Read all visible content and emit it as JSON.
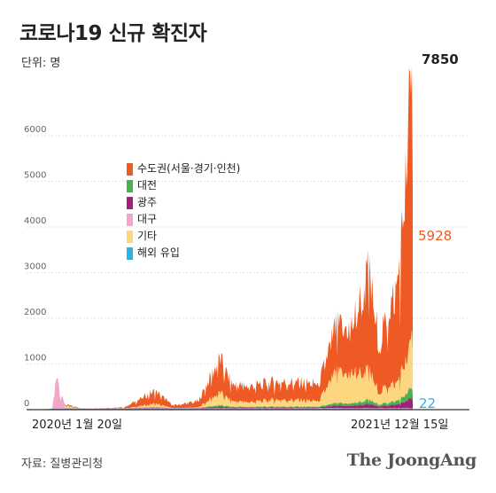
{
  "title": "코로나19 신규 확진자",
  "unit": "단위: 명",
  "source": "자료: 질병관리청",
  "brand": "The JoongAng",
  "colors": {
    "capital": "#ee5a24",
    "daejeon": "#4caf50",
    "gwangju": "#a0207a",
    "daegu": "#f2a7c9",
    "other": "#fcd77f",
    "overseas": "#29b3e6"
  },
  "chart_data": {
    "type": "area",
    "stacked": true,
    "x_range": [
      "2020-01-20",
      "2021-12-15"
    ],
    "x_tick_labels": [
      "2020년 1월 20일",
      "2021년 12월 15일"
    ],
    "ylim": [
      0,
      8000
    ],
    "y_ticks": [
      0,
      1000,
      2000,
      3000,
      4000,
      5000,
      6000
    ],
    "grid": true,
    "legend_position": "upper-left",
    "series": [
      {
        "name": "수도권(서울·경기·인천)",
        "key": "capital"
      },
      {
        "name": "대전",
        "key": "daejeon"
      },
      {
        "name": "광주",
        "key": "gwangju"
      },
      {
        "name": "대구",
        "key": "daegu"
      },
      {
        "name": "기타",
        "key": "other"
      },
      {
        "name": "해외 유입",
        "key": "overseas"
      }
    ],
    "x_points": [
      "2020-01-20",
      "2020-02-20",
      "2020-02-29",
      "2020-03-05",
      "2020-03-15",
      "2020-04-15",
      "2020-07-01",
      "2020-08-27",
      "2020-09-30",
      "2020-11-15",
      "2020-12-25",
      "2021-01-15",
      "2021-02-20",
      "2021-04-01",
      "2021-05-15",
      "2021-06-25",
      "2021-07-25",
      "2021-08-25",
      "2021-09-25",
      "2021-10-15",
      "2021-11-01",
      "2021-11-15",
      "2021-11-25",
      "2021-12-01",
      "2021-12-08",
      "2021-12-15"
    ],
    "total_values": [
      0,
      20,
      910,
      400,
      120,
      30,
      50,
      440,
      100,
      200,
      1200,
      600,
      550,
      650,
      650,
      600,
      1900,
      1950,
      3200,
      1500,
      2400,
      2800,
      4000,
      5300,
      6800,
      7850
    ],
    "capital_values": [
      0,
      5,
      50,
      40,
      30,
      15,
      30,
      300,
      70,
      150,
      800,
      400,
      370,
      420,
      420,
      400,
      1050,
      1100,
      2300,
      1100,
      1800,
      2200,
      3100,
      4200,
      5500,
      5928
    ],
    "annotations": [
      {
        "label": "7850",
        "value": 7850,
        "series": "total"
      },
      {
        "label": "5928",
        "value": 5928,
        "series": "수도권(서울·경기·인천)"
      },
      {
        "label": "22",
        "value": 22,
        "series": "해외 유입"
      }
    ]
  }
}
